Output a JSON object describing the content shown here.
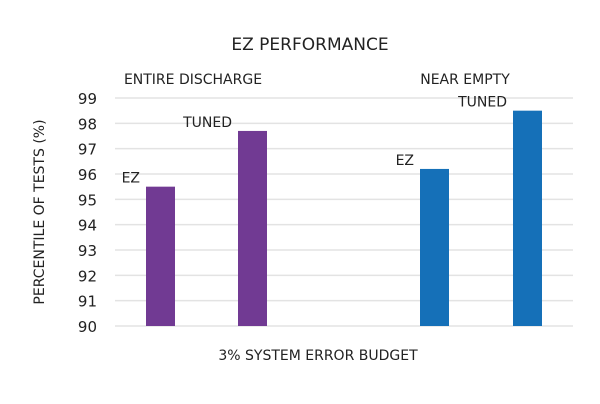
{
  "chart_data": {
    "type": "bar",
    "title": "EZ PERFORMANCE",
    "xlabel": "3% SYSTEM ERROR BUDGET",
    "ylabel": "PERCENTILE OF TESTS (%)",
    "ylim": [
      90,
      99
    ],
    "yticks": [
      90,
      91,
      92,
      93,
      94,
      95,
      96,
      97,
      98,
      99
    ],
    "grid": true,
    "groups": [
      {
        "name": "ENTIRE DISCHARGE",
        "color": "#713a93",
        "bars": [
          {
            "label": "EZ",
            "value": 95.5
          },
          {
            "label": "TUNED",
            "value": 97.7
          }
        ]
      },
      {
        "name": "NEAR EMPTY",
        "color": "#1570b8",
        "bars": [
          {
            "label": "EZ",
            "value": 96.2
          },
          {
            "label": "TUNED",
            "value": 98.5
          }
        ]
      }
    ]
  }
}
